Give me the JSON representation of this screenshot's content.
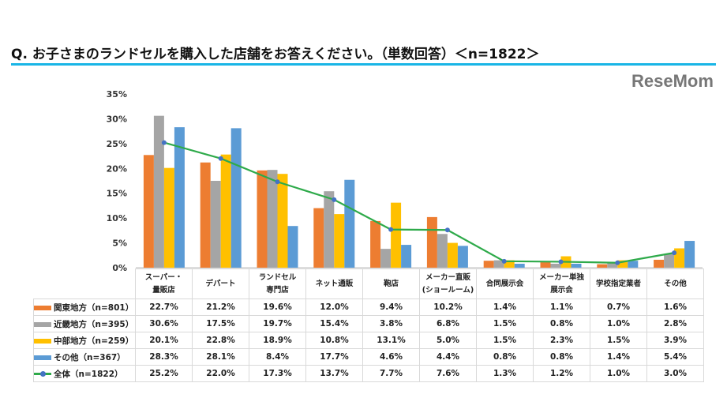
{
  "title": "Q. お子さまのランドセルを購入した店舗をお答えください。（単数回答）＜n=1822＞",
  "logo": "ReseMom",
  "chart_data": {
    "type": "bar+line",
    "categories": [
      "スーパー・\n量販店",
      "デパート",
      "ランドセル\n専門店",
      "ネット通販",
      "鞄店",
      "メーカー直販\n(ショールーム)",
      "合同展示会",
      "メーカー単独\n展示会",
      "学校指定業者",
      "その他"
    ],
    "ylim": [
      0,
      35
    ],
    "yticks": [
      0,
      5,
      10,
      15,
      20,
      25,
      30,
      35
    ],
    "ytick_labels": [
      "0%",
      "5%",
      "10%",
      "15%",
      "20%",
      "25%",
      "30%",
      "35%"
    ],
    "series": [
      {
        "name": "関東地方（n=801）",
        "type": "bar",
        "color": "#ED7D31",
        "values": [
          22.7,
          21.2,
          19.6,
          12.0,
          9.4,
          10.2,
          1.4,
          1.1,
          0.7,
          1.6
        ]
      },
      {
        "name": "近畿地方（n=395）",
        "type": "bar",
        "color": "#A5A5A5",
        "values": [
          30.6,
          17.5,
          19.7,
          15.4,
          3.8,
          6.8,
          1.5,
          0.8,
          1.0,
          2.8
        ]
      },
      {
        "name": "中部地方（n=259）",
        "type": "bar",
        "color": "#FFC000",
        "values": [
          20.1,
          22.8,
          18.9,
          10.8,
          13.1,
          5.0,
          1.5,
          2.3,
          1.5,
          3.9
        ]
      },
      {
        "name": "その他（n=367）",
        "type": "bar",
        "color": "#5B9BD5",
        "values": [
          28.3,
          28.1,
          8.4,
          17.7,
          4.6,
          4.4,
          0.8,
          0.8,
          1.4,
          5.4
        ]
      },
      {
        "name": "全体（n=1822）",
        "type": "line",
        "color": "#2EAA4A",
        "marker_color": "#4472C4",
        "values": [
          25.2,
          22.0,
          17.3,
          13.7,
          7.7,
          7.6,
          1.3,
          1.2,
          1.0,
          3.0
        ]
      }
    ],
    "legend": "table"
  }
}
